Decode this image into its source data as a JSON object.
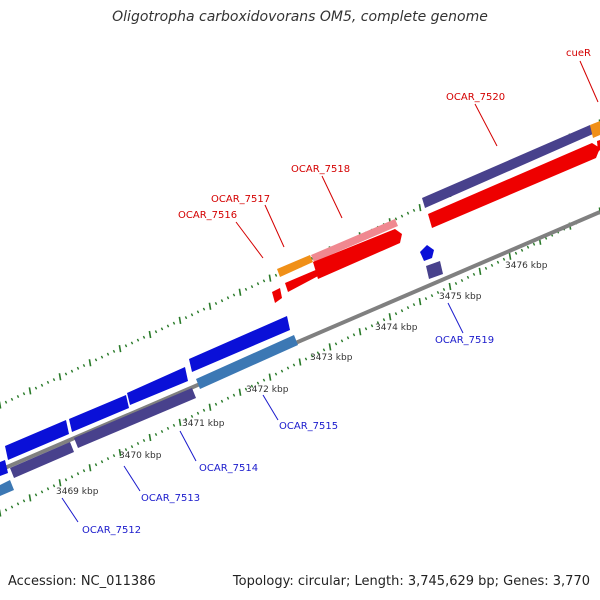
{
  "title": "Oligotropha carboxidovorans OM5, complete genome",
  "footer": {
    "accession": "Accession: NC_011386",
    "topology": "Topology: circular; Length: 3,745,629 bp; Genes: 3,770"
  },
  "colors": {
    "backbone": "#808080",
    "forward_cds": "#ee0000",
    "reverse_cds": "#0a10d8",
    "forward_label": "#d40000",
    "reverse_label": "#1a1acc",
    "forward_rna": "#f09018",
    "reverse_rna": "#3c78b4",
    "forward_pseudo": "#f08890",
    "reverse_pseudo": "#48418c",
    "tick": "#2a7a2a"
  },
  "axis_ticks": [
    "3469 kbp",
    "3470 kbp",
    "3471 kbp",
    "3472 kbp",
    "3473 kbp",
    "3474 kbp",
    "3475 kbp",
    "3476 kbp"
  ],
  "genes_forward": [
    "OCAR_7516",
    "OCAR_7517",
    "OCAR_7518",
    "OCAR_7520",
    "cueR"
  ],
  "genes_reverse": [
    "OCAR_7512",
    "OCAR_7513",
    "OCAR_7514",
    "OCAR_7515",
    "OCAR_7519"
  ]
}
